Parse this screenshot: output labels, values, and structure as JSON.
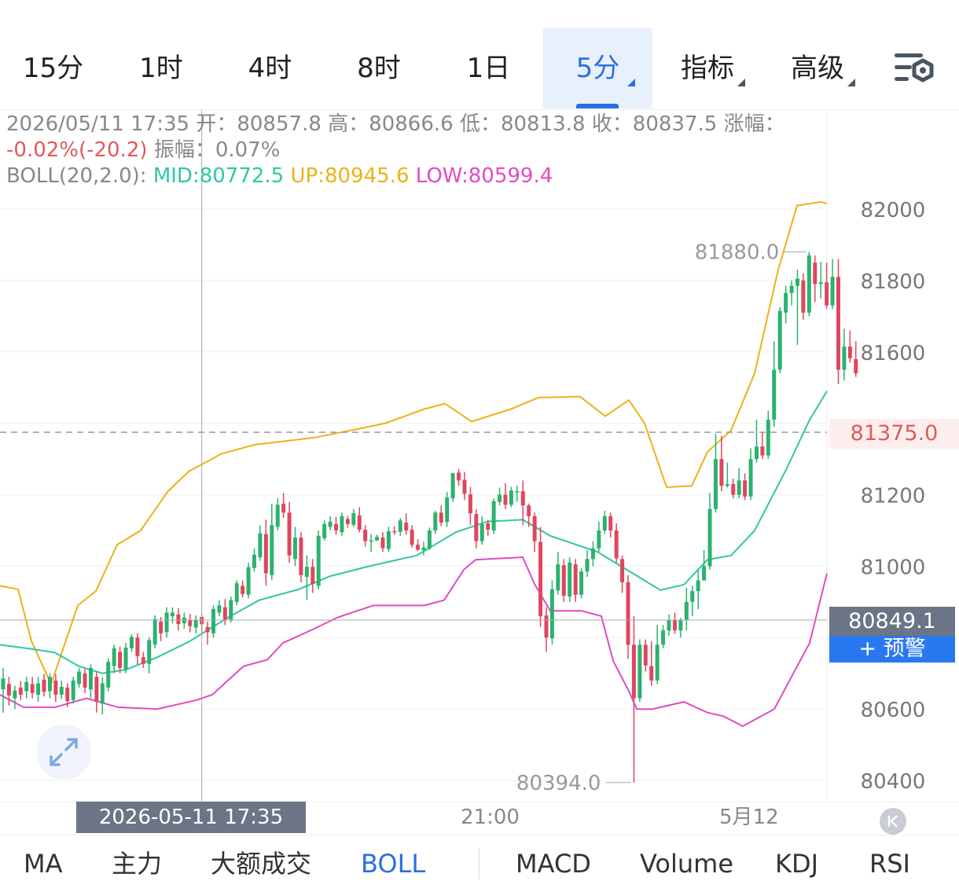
{
  "timeframes": [
    {
      "label": "15分",
      "active": false,
      "dropdown": false
    },
    {
      "label": "1时",
      "active": false,
      "dropdown": false
    },
    {
      "label": "4时",
      "active": false,
      "dropdown": false
    },
    {
      "label": "8时",
      "active": false,
      "dropdown": false
    },
    {
      "label": "1日",
      "active": false,
      "dropdown": false
    },
    {
      "label": "5分",
      "active": true,
      "dropdown": true
    },
    {
      "label": "指标",
      "active": false,
      "dropdown": true
    },
    {
      "label": "高级",
      "active": false,
      "dropdown": true
    }
  ],
  "settings_icon": "chart-settings-icon",
  "info": {
    "datetime": "2026/05/11 17:35",
    "open_label": "开：",
    "open": "80857.8",
    "high_label": "高：",
    "high": "80866.6",
    "low_label": "低：",
    "low": "80813.8",
    "close_label": "收：",
    "close": "80837.5",
    "change_label": "涨幅：",
    "change": "-0.02%(-20.2)",
    "amplitude_label": "振幅：",
    "amplitude": "0.07%",
    "boll_name": "BOLL(20,2.0):",
    "boll_mid": "MID:80772.5",
    "boll_up": "UP:80945.6",
    "boll_low": "LOW:80599.4"
  },
  "price_tag": "80849.1",
  "alert_button": "+ 预警",
  "last_price_tag": "81375.0",
  "crosshair_time": "2026-05-11 17:35",
  "x_ticks": [
    "21:00",
    "5月12"
  ],
  "indicators": [
    {
      "label": "MA",
      "active": false
    },
    {
      "label": "主力",
      "active": false
    },
    {
      "label": "大额成交",
      "active": false
    },
    {
      "label": "BOLL",
      "active": true
    },
    {
      "label": "MACD",
      "active": false
    },
    {
      "label": "Volume",
      "active": false
    },
    {
      "label": "KDJ",
      "active": false
    },
    {
      "label": "RSI",
      "active": false
    }
  ],
  "colors": {
    "up": "#2bb26f",
    "down": "#e0465f",
    "mid": "#2fc7a4",
    "upper": "#eab21a",
    "lower": "#e04bc2",
    "accent": "#2a6fe0"
  },
  "chart_data": {
    "type": "candlestick",
    "y_ticks": [
      80400,
      80600,
      80800,
      81000,
      81200,
      81400,
      81600,
      81800,
      82000
    ],
    "ylim": [
      80394,
      82025
    ],
    "high_marker": "81880.0",
    "low_marker": "80394.0",
    "last_price": 81375.0,
    "crosshair_price": 80849.1,
    "crosshair_index": 34,
    "grid": true,
    "candles": [
      [
        80655,
        80685,
        80590,
        80715
      ],
      [
        80670,
        80638,
        80610,
        80690
      ],
      [
        80630,
        80652,
        80600,
        80665
      ],
      [
        80660,
        80640,
        80625,
        80678
      ],
      [
        80650,
        80676,
        80630,
        80690
      ],
      [
        80670,
        80645,
        80630,
        80690
      ],
      [
        80640,
        80672,
        80620,
        80690
      ],
      [
        80682,
        80648,
        80635,
        80698
      ],
      [
        80650,
        80690,
        80630,
        80700
      ],
      [
        80680,
        80640,
        80620,
        80698
      ],
      [
        80640,
        80662,
        80628,
        80680
      ],
      [
        80660,
        80622,
        80605,
        80672
      ],
      [
        80625,
        80680,
        80615,
        80690
      ],
      [
        80670,
        80705,
        80660,
        80715
      ],
      [
        80700,
        80660,
        80645,
        80712
      ],
      [
        80655,
        80715,
        80630,
        80725
      ],
      [
        80690,
        80620,
        80590,
        80705
      ],
      [
        80615,
        80672,
        80585,
        80690
      ],
      [
        80660,
        80732,
        80650,
        80742
      ],
      [
        80720,
        80770,
        80700,
        80780
      ],
      [
        80760,
        80715,
        80700,
        80775
      ],
      [
        80710,
        80772,
        80700,
        80785
      ],
      [
        80770,
        80802,
        80760,
        80810
      ],
      [
        80800,
        80748,
        80725,
        80812
      ],
      [
        80745,
        80726,
        80715,
        80760
      ],
      [
        80726,
        80793,
        80700,
        80800
      ],
      [
        80780,
        80852,
        80770,
        80862
      ],
      [
        80845,
        80812,
        80790,
        80858
      ],
      [
        80815,
        80870,
        80800,
        80885
      ],
      [
        80860,
        80870,
        80840,
        80885
      ],
      [
        80865,
        80838,
        80820,
        80882
      ],
      [
        80840,
        80856,
        80825,
        80870
      ],
      [
        80850,
        80832,
        80815,
        80866
      ],
      [
        80828,
        80848,
        80812,
        80862
      ],
      [
        80857.8,
        80837.5,
        80813.8,
        80866.6
      ],
      [
        80830,
        80815,
        80780,
        80845
      ],
      [
        80812,
        80880,
        80800,
        80890
      ],
      [
        80870,
        80890,
        80860,
        80905
      ],
      [
        80885,
        80850,
        80835,
        80908
      ],
      [
        80850,
        80905,
        80842,
        80915
      ],
      [
        80900,
        80952,
        80890,
        80960
      ],
      [
        80945,
        80922,
        80912,
        80960
      ],
      [
        80920,
        80997,
        80910,
        81010
      ],
      [
        80995,
        81032,
        80985,
        81050
      ],
      [
        81025,
        81092,
        81015,
        81115
      ],
      [
        81090,
        80980,
        80945,
        81130
      ],
      [
        80975,
        81115,
        80962,
        81175
      ],
      [
        81110,
        81172,
        81100,
        81190
      ],
      [
        81175,
        81150,
        81135,
        81205
      ],
      [
        81150,
        81030,
        81010,
        81180
      ],
      [
        81020,
        81080,
        81000,
        81110
      ],
      [
        81080,
        80975,
        80955,
        81095
      ],
      [
        80970,
        80998,
        80905,
        81030
      ],
      [
        80998,
        80950,
        80925,
        81020
      ],
      [
        80945,
        81085,
        80935,
        81100
      ],
      [
        81078,
        81118,
        81072,
        81128
      ],
      [
        81110,
        81125,
        81100,
        81140
      ],
      [
        81118,
        81100,
        81088,
        81138
      ],
      [
        81095,
        81140,
        81085,
        81150
      ],
      [
        81132,
        81118,
        81108,
        81140
      ],
      [
        81116,
        81148,
        81110,
        81160
      ],
      [
        81142,
        81102,
        81095,
        81165
      ],
      [
        81102,
        81070,
        81055,
        81115
      ],
      [
        81070,
        81072,
        81040,
        81090
      ],
      [
        81072,
        81082,
        81070,
        81088
      ],
      [
        81080,
        81050,
        81040,
        81095
      ],
      [
        81048,
        81098,
        81040,
        81110
      ],
      [
        81098,
        81095,
        81088,
        81112
      ],
      [
        81096,
        81128,
        81085,
        81135
      ],
      [
        81122,
        81100,
        81088,
        81148
      ],
      [
        81102,
        81060,
        81052,
        81115
      ],
      [
        81060,
        81046,
        81042,
        81075
      ],
      [
        81045,
        81052,
        81030,
        81068
      ],
      [
        81050,
        81100,
        81045,
        81108
      ],
      [
        81100,
        81150,
        81090,
        81155
      ],
      [
        81150,
        81122,
        81112,
        81170
      ],
      [
        81124,
        81192,
        81110,
        81208
      ],
      [
        81190,
        81260,
        81180,
        81262
      ],
      [
        81262,
        81240,
        81225,
        81272
      ],
      [
        81242,
        81203,
        81185,
        81264
      ],
      [
        81201,
        81148,
        81115,
        81222
      ],
      [
        81146,
        81070,
        81050,
        81160
      ],
      [
        81070,
        81118,
        81060,
        81140
      ],
      [
        81120,
        81102,
        81085,
        81130
      ],
      [
        81100,
        81182,
        81090,
        81190
      ],
      [
        81180,
        81200,
        81170,
        81220
      ],
      [
        81200,
        81172,
        81160,
        81232
      ],
      [
        81172,
        81212,
        81165,
        81222
      ],
      [
        81210,
        81210,
        81180,
        81225
      ],
      [
        81210,
        81170,
        81115,
        81240
      ],
      [
        81170,
        81140,
        81110,
        81175
      ],
      [
        81140,
        81070,
        81040,
        81150
      ],
      [
        81068,
        80860,
        80830,
        81110
      ],
      [
        80862,
        80800,
        80760,
        80885
      ],
      [
        80798,
        80935,
        80780,
        80960
      ],
      [
        80932,
        81005,
        80920,
        81040
      ],
      [
        81003,
        80917,
        80900,
        81020
      ],
      [
        80915,
        81010,
        80900,
        81025
      ],
      [
        81005,
        80920,
        80900,
        81020
      ],
      [
        80920,
        80985,
        80910,
        80995
      ],
      [
        80985,
        81020,
        80970,
        81045
      ],
      [
        81020,
        81050,
        81000,
        81070
      ],
      [
        81050,
        81100,
        81040,
        81125
      ],
      [
        81100,
        81140,
        81090,
        81155
      ],
      [
        81140,
        81100,
        81080,
        81150
      ],
      [
        81100,
        81022,
        81010,
        81120
      ],
      [
        81020,
        80955,
        80925,
        81030
      ],
      [
        80955,
        80780,
        80740,
        80975
      ],
      [
        80780,
        80630,
        80394,
        80860
      ],
      [
        80630,
        80780,
        80620,
        80795
      ],
      [
        80780,
        80722,
        80705,
        80795
      ],
      [
        80720,
        80680,
        80665,
        80790
      ],
      [
        80680,
        80780,
        80670,
        80835
      ],
      [
        80780,
        80820,
        80770,
        80835
      ],
      [
        80820,
        80850,
        80805,
        80865
      ],
      [
        80850,
        80820,
        80810,
        80870
      ],
      [
        80820,
        80850,
        80800,
        80855
      ],
      [
        80850,
        80900,
        80820,
        80940
      ],
      [
        80900,
        80930,
        80860,
        80945
      ],
      [
        80930,
        80960,
        80880,
        80990
      ],
      [
        80960,
        81000,
        80960,
        81045
      ],
      [
        81000,
        81160,
        80990,
        81205
      ],
      [
        81160,
        81300,
        81150,
        81370
      ],
      [
        81300,
        81225,
        81210,
        81365
      ],
      [
        81225,
        81230,
        81220,
        81290
      ],
      [
        81230,
        81200,
        81190,
        81245
      ],
      [
        81200,
        81240,
        81190,
        81275
      ],
      [
        81240,
        81195,
        81185,
        81260
      ],
      [
        81195,
        81300,
        81185,
        81330
      ],
      [
        81300,
        81335,
        81290,
        81410
      ],
      [
        81335,
        81310,
        81300,
        81375
      ],
      [
        81310,
        81410,
        81300,
        81435
      ],
      [
        81410,
        81550,
        81390,
        81630
      ],
      [
        81550,
        81715,
        81540,
        81725
      ],
      [
        81710,
        81765,
        81680,
        81785
      ],
      [
        81765,
        81785,
        81730,
        81800
      ],
      [
        81785,
        81805,
        81620,
        81830
      ],
      [
        81800,
        81710,
        81690,
        81820
      ],
      [
        81710,
        81870,
        81700,
        81880
      ],
      [
        81850,
        81790,
        81740,
        81870
      ],
      [
        81790,
        81795,
        81750,
        81852
      ],
      [
        81795,
        81730,
        81720,
        81850
      ],
      [
        81730,
        81810,
        81720,
        81860
      ],
      [
        81810,
        81550,
        81510,
        81860
      ],
      [
        81550,
        81615,
        81520,
        81665
      ],
      [
        81615,
        81582,
        81570,
        81660
      ],
      [
        81580,
        81540,
        81530,
        81630
      ]
    ],
    "boll": {
      "upper": [
        [
          0,
          80945
        ],
        [
          23,
          80935
        ],
        [
          40,
          80790
        ],
        [
          65,
          80670
        ],
        [
          99,
          80890
        ],
        [
          122,
          80930
        ],
        [
          149,
          81060
        ],
        [
          179,
          81100
        ],
        [
          213,
          81208
        ],
        [
          240,
          81265
        ],
        [
          282,
          81315
        ],
        [
          324,
          81340
        ],
        [
          400,
          81360
        ],
        [
          457,
          81385
        ],
        [
          490,
          81400
        ],
        [
          540,
          81440
        ],
        [
          566,
          81455
        ],
        [
          600,
          81405
        ],
        [
          650,
          81440
        ],
        [
          685,
          81472
        ],
        [
          738,
          81475
        ],
        [
          770,
          81420
        ],
        [
          800,
          81465
        ],
        [
          820,
          81400
        ],
        [
          848,
          81221
        ],
        [
          880,
          81225
        ],
        [
          900,
          81320
        ],
        [
          930,
          81380
        ],
        [
          960,
          81540
        ],
        [
          990,
          81830
        ],
        [
          1014,
          82010
        ],
        [
          1045,
          82020
        ],
        [
          1052,
          82015
        ]
      ],
      "mid": [
        [
          0,
          80780
        ],
        [
          40,
          80768
        ],
        [
          70,
          80758
        ],
        [
          100,
          80720
        ],
        [
          130,
          80700
        ],
        [
          160,
          80710
        ],
        [
          200,
          80745
        ],
        [
          240,
          80788
        ],
        [
          290,
          80856
        ],
        [
          330,
          80905
        ],
        [
          380,
          80935
        ],
        [
          420,
          80972
        ],
        [
          470,
          81000
        ],
        [
          530,
          81030
        ],
        [
          580,
          81095
        ],
        [
          620,
          81125
        ],
        [
          665,
          81130
        ],
        [
          700,
          81085
        ],
        [
          760,
          81040
        ],
        [
          805,
          80980
        ],
        [
          840,
          80933
        ],
        [
          870,
          80948
        ],
        [
          900,
          81018
        ],
        [
          930,
          81030
        ],
        [
          960,
          81100
        ],
        [
          1000,
          81270
        ],
        [
          1030,
          81410
        ],
        [
          1052,
          81490
        ]
      ],
      "lower": [
        [
          0,
          80640
        ],
        [
          30,
          80605
        ],
        [
          70,
          80605
        ],
        [
          110,
          80630
        ],
        [
          150,
          80605
        ],
        [
          200,
          80600
        ],
        [
          250,
          80625
        ],
        [
          270,
          80640
        ],
        [
          290,
          80680
        ],
        [
          310,
          80720
        ],
        [
          340,
          80738
        ],
        [
          360,
          80785
        ],
        [
          400,
          80825
        ],
        [
          430,
          80857
        ],
        [
          475,
          80890
        ],
        [
          540,
          80890
        ],
        [
          565,
          80905
        ],
        [
          590,
          80990
        ],
        [
          605,
          81018
        ],
        [
          665,
          81025
        ],
        [
          680,
          80950
        ],
        [
          700,
          80875
        ],
        [
          740,
          80875
        ],
        [
          765,
          80860
        ],
        [
          780,
          80735
        ],
        [
          800,
          80650
        ],
        [
          810,
          80600
        ],
        [
          830,
          80600
        ],
        [
          870,
          80620
        ],
        [
          900,
          80590
        ],
        [
          920,
          80580
        ],
        [
          945,
          80552
        ],
        [
          985,
          80600
        ],
        [
          1030,
          80785
        ],
        [
          1052,
          80980
        ]
      ]
    }
  }
}
